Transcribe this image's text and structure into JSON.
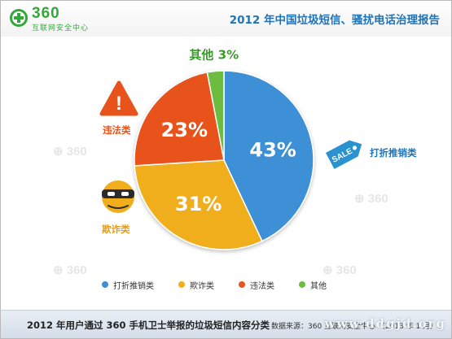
{
  "header": {
    "logo_number": "360",
    "logo_subtitle": "互联网安全中心",
    "title": "2012 年中国垃圾短信、骚扰电话治理报告"
  },
  "watermark_text": "360",
  "chart_data": {
    "type": "pie",
    "title": "",
    "slices": [
      {
        "name": "打折推销类",
        "value": 43,
        "label": "43%",
        "color": "#3d8fd6"
      },
      {
        "name": "欺诈类",
        "value": 31,
        "label": "31%",
        "color": "#f0ae1c"
      },
      {
        "name": "违法类",
        "value": 23,
        "label": "23%",
        "color": "#e8531b"
      },
      {
        "name": "其他",
        "value": 3,
        "label": "其他 3%",
        "color": "#6cbc3f"
      }
    ],
    "legend_position": "bottom"
  },
  "callouts": {
    "sale_tag_text": "SALE",
    "fraud_label": "欺诈类",
    "illegal_label": "违法类",
    "promo_label": "打折推销类",
    "warning_glyph": "!"
  },
  "colors": {
    "brand_green": "#32a83b",
    "title_blue": "#1f73b7",
    "illegal_red": "#e8531b",
    "fraud_orange": "#f0ae1c",
    "promo_blue": "#3d8fd6"
  },
  "footer": {
    "caption": "2012 年用户通过 360 手机卫士举报的垃圾短信内容分类",
    "source": "数据来源：360 互联网安全中心 （2013 年 1 月）",
    "site": "www.ddgjd.org"
  }
}
